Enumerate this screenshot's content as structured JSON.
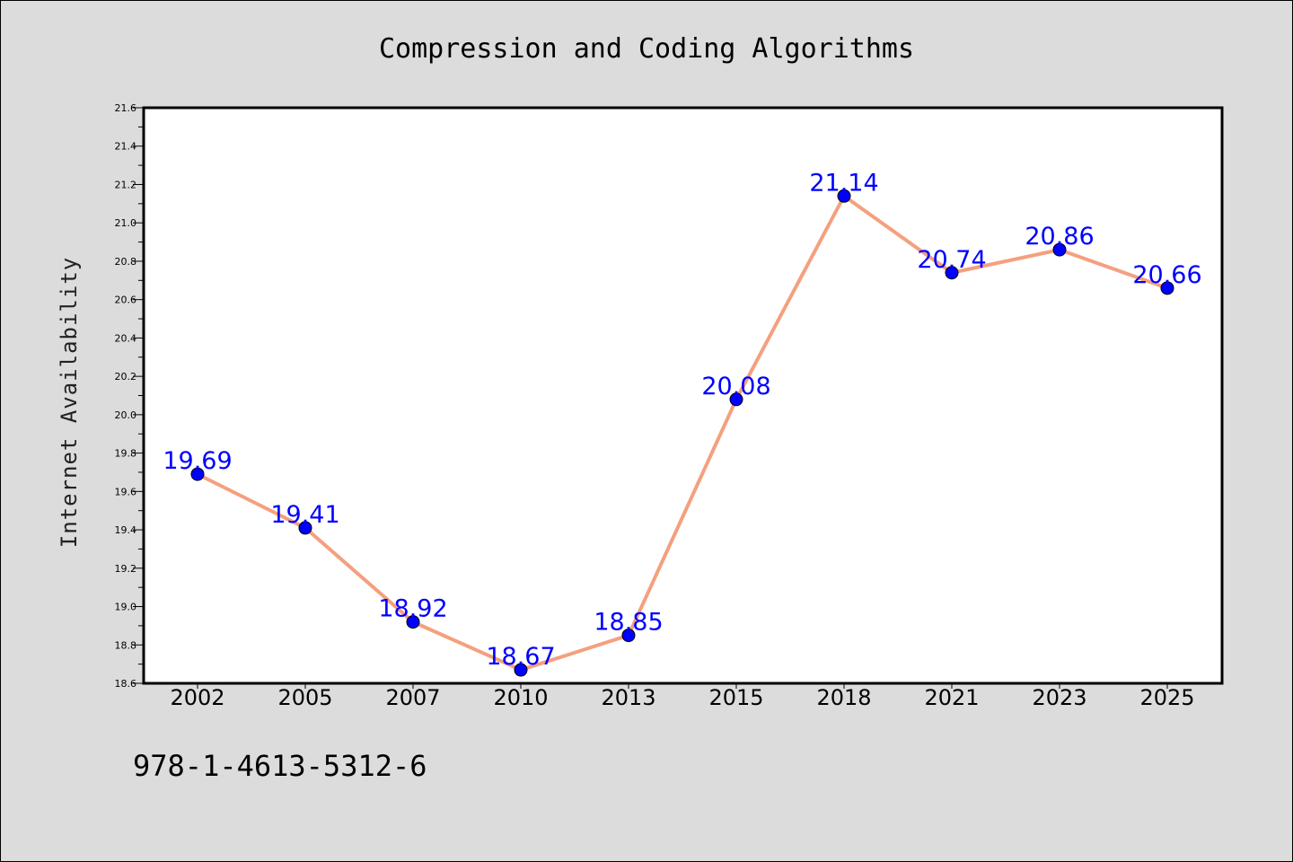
{
  "chart_data": {
    "type": "line",
    "title": "Compression and Coding Algorithms",
    "xlabel": "",
    "ylabel": "Internet Availability",
    "categories": [
      "2002",
      "2005",
      "2007",
      "2010",
      "2013",
      "2015",
      "2018",
      "2021",
      "2023",
      "2025"
    ],
    "values": [
      19.69,
      19.41,
      18.92,
      18.67,
      18.85,
      20.08,
      21.14,
      20.74,
      20.86,
      20.66
    ],
    "data_labels": [
      "19.69",
      "19.41",
      "18.92",
      "18.67",
      "18.85",
      "20.08",
      "21.14",
      "20.74",
      "20.86",
      "20.66"
    ],
    "ylim": [
      18.6,
      21.6
    ],
    "yticks": [
      "18.6",
      "18.8",
      "19.0",
      "19.2",
      "19.4",
      "19.6",
      "19.8",
      "20.0",
      "20.2",
      "20.4",
      "20.6",
      "20.8",
      "21.0",
      "21.2",
      "21.4",
      "21.6"
    ],
    "grid": false,
    "legend": "none",
    "colors": {
      "line": "#f4a07f",
      "marker": "#0000ff",
      "marker_edge": "#000000",
      "label": "#0000ff",
      "plot_bg": "#ffffff",
      "page_bg": "#dcdcdc"
    }
  },
  "footer": {
    "text": "978-1-4613-5312-6"
  }
}
